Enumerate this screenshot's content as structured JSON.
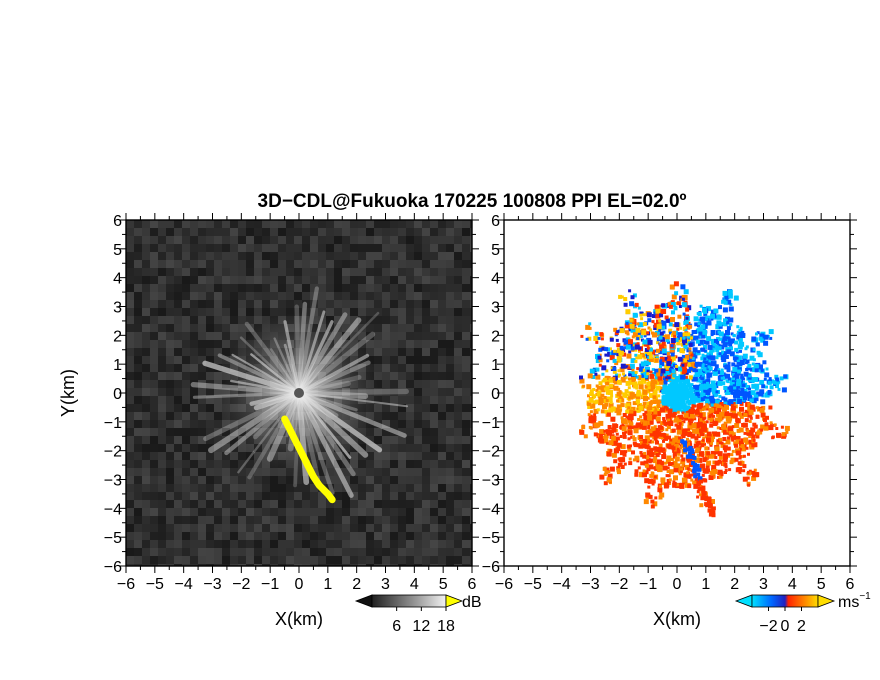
{
  "title": "3D−CDL@Fukuoka 170225 100808 PPI EL=02.0º",
  "chart_data": [
    {
      "type": "heatmap",
      "panel": "left",
      "quantity": "reflectivity-like (gray scale, high values in yellow)",
      "xlabel": "X(km)",
      "ylabel": "Y(km)",
      "xlim": [
        -6,
        6
      ],
      "ylim": [
        -6,
        6
      ],
      "xticks": [
        -6,
        -5,
        -4,
        -3,
        -2,
        -1,
        0,
        1,
        2,
        3,
        4,
        5,
        6
      ],
      "yticks": [
        -6,
        -5,
        -4,
        -3,
        -2,
        -1,
        0,
        1,
        2,
        3,
        4,
        5,
        6
      ],
      "xtick_labels": [
        "−6",
        "−5",
        "−4",
        "−3",
        "−2",
        "−1",
        "0",
        "1",
        "2",
        "3",
        "4",
        "5",
        "6"
      ],
      "ytick_labels": [
        "−6",
        "−5",
        "−4",
        "−3",
        "−2",
        "−1",
        "0",
        "1",
        "2",
        "3",
        "4",
        "5",
        "6"
      ],
      "colorbar": {
        "unit": "dB",
        "tick_values": [
          6,
          12,
          18
        ],
        "tick_labels": [
          "6",
          "12",
          "18"
        ]
      },
      "features": {
        "radial_spokes_range_km": [
          1.5,
          4.0
        ],
        "high_echo_trail_km": [
          [
            -0.5,
            -0.9
          ],
          [
            -0.3,
            -1.3
          ],
          [
            -0.1,
            -1.7
          ],
          [
            0.1,
            -2.1
          ],
          [
            0.3,
            -2.5
          ],
          [
            0.5,
            -2.9
          ],
          [
            0.7,
            -3.2
          ],
          [
            1.0,
            -3.5
          ],
          [
            1.15,
            -3.7
          ]
        ],
        "high_echo_color": "#ffff00"
      }
    },
    {
      "type": "heatmap",
      "panel": "right",
      "quantity": "Doppler velocity",
      "xlabel": "X(km)",
      "ylabel": "",
      "xlim": [
        -6,
        6
      ],
      "ylim": [
        -6,
        6
      ],
      "xticks": [
        -6,
        -5,
        -4,
        -3,
        -2,
        -1,
        0,
        1,
        2,
        3,
        4,
        5,
        6
      ],
      "xtick_labels": [
        "−6",
        "−5",
        "−4",
        "−3",
        "−2",
        "−1",
        "0",
        "1",
        "2",
        "3",
        "4",
        "5",
        "6"
      ],
      "ytick_labels": [
        "6",
        "5",
        "4",
        "3",
        "2",
        "1",
        "0",
        "−1",
        "−2",
        "−3",
        "−4",
        "−5",
        "−6"
      ],
      "colorbar": {
        "unit": "ms",
        "unit_exponent": "−1",
        "tick_values": [
          -2,
          0,
          2
        ],
        "tick_labels": [
          "−2",
          "0",
          "2"
        ]
      },
      "palette": [
        "#00c8ff",
        "#0055ff",
        "#1a1acc",
        "#ff3300",
        "#ff8800",
        "#ffcc00"
      ],
      "echo_extent_km": {
        "x": [
          -3.4,
          3.8
        ],
        "y": [
          -4.3,
          3.9
        ]
      }
    }
  ]
}
